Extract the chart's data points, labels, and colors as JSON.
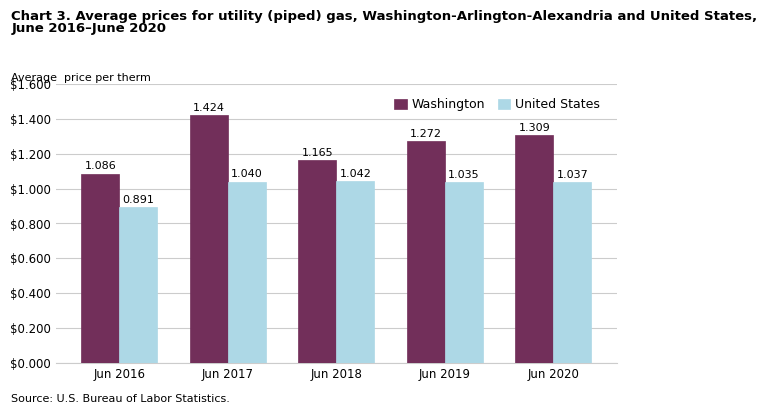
{
  "title_line1": "Chart 3. Average prices for utility (piped) gas, Washington-Arlington-Alexandria and United States,",
  "title_line2": "June 2016–June 2020",
  "ylabel": "Average  price per therm",
  "source": "Source: U.S. Bureau of Labor Statistics.",
  "categories": [
    "Jun 2016",
    "Jun 2017",
    "Jun 2018",
    "Jun 2019",
    "Jun 2020"
  ],
  "washington_values": [
    1.086,
    1.424,
    1.165,
    1.272,
    1.309
  ],
  "us_values": [
    0.891,
    1.04,
    1.042,
    1.035,
    1.037
  ],
  "washington_color": "#722F5A",
  "us_color": "#ADD8E6",
  "ylim": [
    0,
    1.6
  ],
  "yticks": [
    0.0,
    0.2,
    0.4,
    0.6,
    0.8,
    1.0,
    1.2,
    1.4,
    1.6
  ],
  "legend_labels": [
    "Washington",
    "United States"
  ],
  "bar_width": 0.35,
  "title_fontsize": 9.5,
  "axis_label_fontsize": 8,
  "tick_fontsize": 8.5,
  "annotation_fontsize": 8,
  "legend_fontsize": 9,
  "background_color": "#ffffff",
  "grid_color": "#cccccc"
}
